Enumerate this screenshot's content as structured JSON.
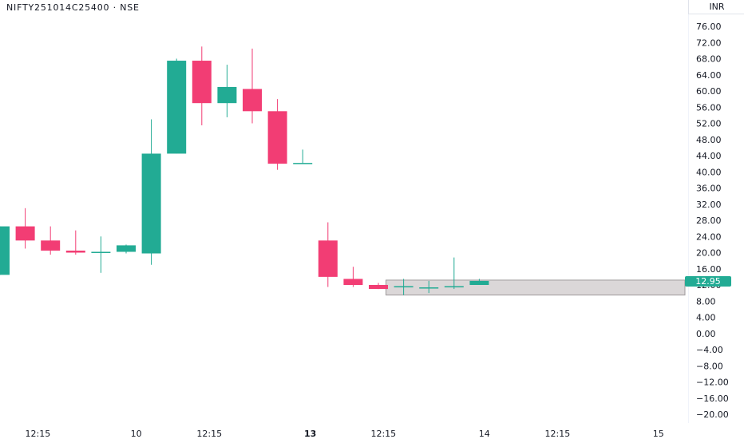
{
  "header": {
    "symbol_title": "NIFTY251014C25400 · NSE",
    "currency": "INR"
  },
  "last_price": "12.95",
  "colors": {
    "up": "#22ab94",
    "down": "#f23d74",
    "zone_fill": "#d5d0d1",
    "zone_border": "#9e9a9b"
  },
  "chart_data": {
    "type": "candlestick",
    "ylim": [
      -20,
      76
    ],
    "y_ticks": [
      "76.00",
      "72.00",
      "68.00",
      "64.00",
      "60.00",
      "56.00",
      "52.00",
      "48.00",
      "44.00",
      "40.00",
      "36.00",
      "32.00",
      "28.00",
      "24.00",
      "20.00",
      "16.00",
      "12.00",
      "8.00",
      "4.00",
      "0.00",
      "−4.00",
      "−8.00",
      "−12.00",
      "−16.00",
      "−20.00"
    ],
    "x_ticks": [
      {
        "label": "12:15",
        "index": 1.5,
        "bold": false
      },
      {
        "label": "10",
        "index": 5.4,
        "bold": false
      },
      {
        "label": "12:15",
        "index": 8.3,
        "bold": false
      },
      {
        "label": "13",
        "index": 12.3,
        "bold": true
      },
      {
        "label": "12:15",
        "index": 15.2,
        "bold": false
      },
      {
        "label": "14",
        "index": 19.2,
        "bold": false
      },
      {
        "label": "12:15",
        "index": 22.1,
        "bold": false
      },
      {
        "label": "15",
        "index": 26.1,
        "bold": false
      }
    ],
    "candles": [
      {
        "open": 14.5,
        "high": 26.5,
        "low": 14.5,
        "close": 26.5
      },
      {
        "open": 26.5,
        "high": 31.0,
        "low": 21.0,
        "close": 23.0
      },
      {
        "open": 23.0,
        "high": 26.5,
        "low": 19.5,
        "close": 20.5
      },
      {
        "open": 20.5,
        "high": 25.5,
        "low": 19.5,
        "close": 20.0
      },
      {
        "open": 20.0,
        "high": 24.0,
        "low": 15.0,
        "close": 20.2
      },
      {
        "open": 20.2,
        "high": 22.0,
        "low": 19.8,
        "close": 21.8
      },
      {
        "open": 19.8,
        "high": 53.0,
        "low": 17.0,
        "close": 44.5
      },
      {
        "open": 44.5,
        "high": 68.0,
        "low": 44.5,
        "close": 67.5
      },
      {
        "open": 67.5,
        "high": 71.0,
        "low": 51.5,
        "close": 57.0
      },
      {
        "open": 57.0,
        "high": 66.5,
        "low": 53.5,
        "close": 61.0
      },
      {
        "open": 60.5,
        "high": 70.5,
        "low": 52.0,
        "close": 55.0
      },
      {
        "open": 55.0,
        "high": 58.0,
        "low": 40.5,
        "close": 42.0
      },
      {
        "open": 42.0,
        "high": 45.5,
        "low": 42.0,
        "close": 42.2
      },
      {
        "open": 23.0,
        "high": 27.5,
        "low": 11.5,
        "close": 14.0
      },
      {
        "open": 13.5,
        "high": 16.5,
        "low": 11.5,
        "close": 12.0
      },
      {
        "open": 12.0,
        "high": 12.5,
        "low": 11.0,
        "close": 11.0
      },
      {
        "open": 11.5,
        "high": 13.5,
        "low": 9.5,
        "close": 11.7
      },
      {
        "open": 11.2,
        "high": 13.0,
        "low": 10.0,
        "close": 11.4
      },
      {
        "open": 11.5,
        "high": 18.8,
        "low": 11.0,
        "close": 11.7
      },
      {
        "open": 12.0,
        "high": 13.5,
        "low": 12.0,
        "close": 13.0
      }
    ],
    "zone": {
      "low": 9.5,
      "high": 13.2,
      "from_index": 15.3
    }
  }
}
